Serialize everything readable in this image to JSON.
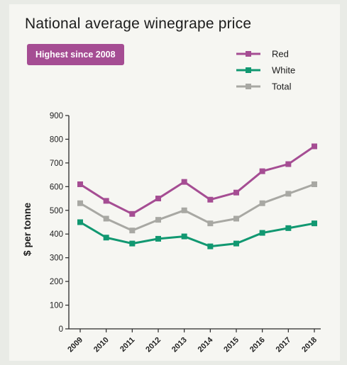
{
  "chart_data": {
    "type": "line",
    "title": "National average winegrape price",
    "annotation": "Highest since 2008",
    "xlabel": "",
    "ylabel": "$ per tonne",
    "categories": [
      "2009",
      "2010",
      "2011",
      "2012",
      "2013",
      "2014",
      "2015",
      "2016",
      "2017",
      "2018"
    ],
    "series": [
      {
        "name": "Red",
        "color": "#a54d93",
        "values": [
          610,
          540,
          485,
          550,
          620,
          545,
          575,
          665,
          695,
          770
        ]
      },
      {
        "name": "White",
        "color": "#119871",
        "values": [
          450,
          385,
          360,
          380,
          390,
          348,
          360,
          405,
          425,
          445
        ]
      },
      {
        "name": "Total",
        "color": "#a8a8a3",
        "values": [
          530,
          465,
          415,
          460,
          500,
          445,
          465,
          530,
          570,
          610
        ]
      }
    ],
    "yticks": [
      0,
      100,
      200,
      300,
      400,
      500,
      600,
      700,
      800,
      900
    ],
    "ylim": [
      0,
      900
    ],
    "grid": false,
    "legend_position": "top-right"
  }
}
